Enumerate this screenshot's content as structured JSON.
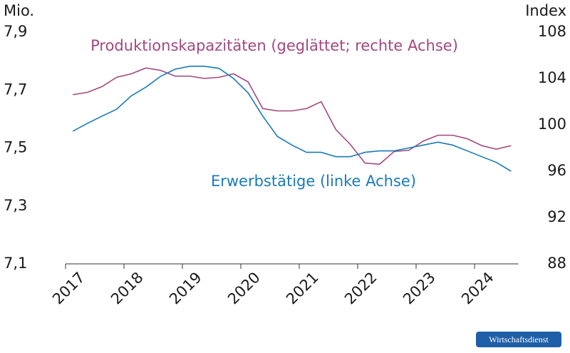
{
  "chart_data": {
    "type": "line",
    "y_unit_label": "Mio.",
    "y2_unit_label": "Index",
    "source": "Wirtschaftsdienst",
    "xlim": [
      2017,
      2024.75
    ],
    "xticks": [
      2017,
      2018,
      2019,
      2020,
      2021,
      2022,
      2023,
      2024
    ],
    "ylim": [
      7.1,
      7.9
    ],
    "yticks": [
      {
        "value": 7.1,
        "label": "7,1"
      },
      {
        "value": 7.3,
        "label": "7,3"
      },
      {
        "value": 7.5,
        "label": "7,5"
      },
      {
        "value": 7.7,
        "label": "7,7"
      },
      {
        "value": 7.9,
        "label": "7,9"
      }
    ],
    "y2lim": [
      88,
      108
    ],
    "y2ticks": [
      88,
      92,
      96,
      100,
      104,
      108
    ],
    "x": [
      2017.125,
      2017.375,
      2017.625,
      2017.875,
      2018.125,
      2018.375,
      2018.625,
      2018.875,
      2019.125,
      2019.375,
      2019.625,
      2019.875,
      2020.125,
      2020.375,
      2020.625,
      2020.875,
      2021.125,
      2021.375,
      2021.625,
      2021.875,
      2022.125,
      2022.375,
      2022.625,
      2022.875,
      2023.125,
      2023.375,
      2023.625,
      2023.875,
      2024.125,
      2024.375,
      2024.625
    ],
    "series": [
      {
        "name": "Produktionskapazitäten (geglättet; rechte Achse)",
        "color": "#a3487f",
        "axis": "y2",
        "values": [
          102.6,
          102.8,
          103.3,
          104.1,
          104.4,
          104.9,
          104.7,
          104.2,
          104.2,
          104.0,
          104.1,
          104.4,
          103.7,
          101.4,
          101.2,
          101.2,
          101.4,
          102.0,
          99.6,
          98.3,
          96.7,
          96.6,
          97.7,
          97.8,
          98.6,
          99.1,
          99.1,
          98.8,
          98.2,
          97.9,
          98.2
        ]
      },
      {
        "name": "Erwerbstätige (linke Achse)",
        "color": "#1a7ab8",
        "axis": "y",
        "values": [
          7.558,
          7.585,
          7.61,
          7.634,
          7.68,
          7.71,
          7.747,
          7.772,
          7.782,
          7.782,
          7.775,
          7.74,
          7.69,
          7.61,
          7.54,
          7.51,
          7.485,
          7.485,
          7.47,
          7.47,
          7.485,
          7.49,
          7.49,
          7.5,
          7.51,
          7.52,
          7.51,
          7.49,
          7.47,
          7.45,
          7.42
        ]
      }
    ]
  }
}
